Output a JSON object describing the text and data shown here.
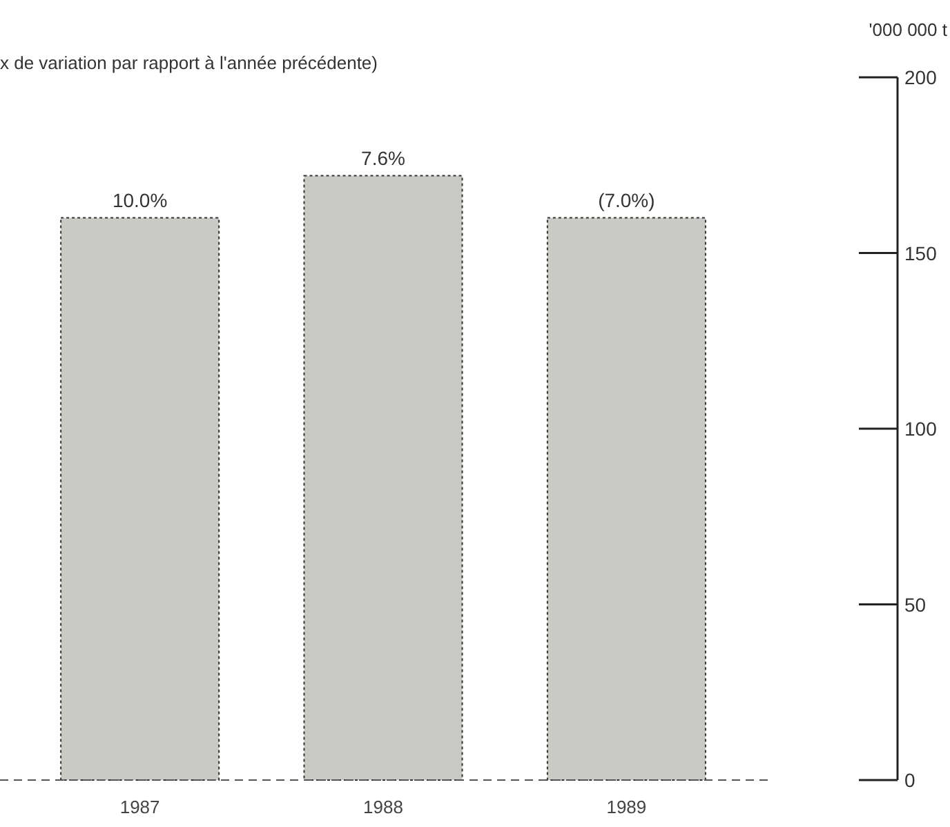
{
  "chart_data": {
    "type": "bar",
    "title": "x de variation par rapport à l'année précédente)",
    "ylabel": "'000 000 t",
    "categories": [
      "1987",
      "1988",
      "1989"
    ],
    "values": [
      160,
      172,
      160
    ],
    "annotations": [
      {
        "text": "10.0%",
        "x": "1987",
        "y": 160
      },
      {
        "text": "7.6%",
        "x": "1988",
        "y": 172
      },
      {
        "text": "(7.0%)",
        "x": "1989",
        "y": 160
      }
    ],
    "color": "#c9c9c6",
    "ylim": [
      0,
      200
    ],
    "yticks": [
      0,
      50,
      100,
      150,
      200
    ],
    "grid": false
  }
}
